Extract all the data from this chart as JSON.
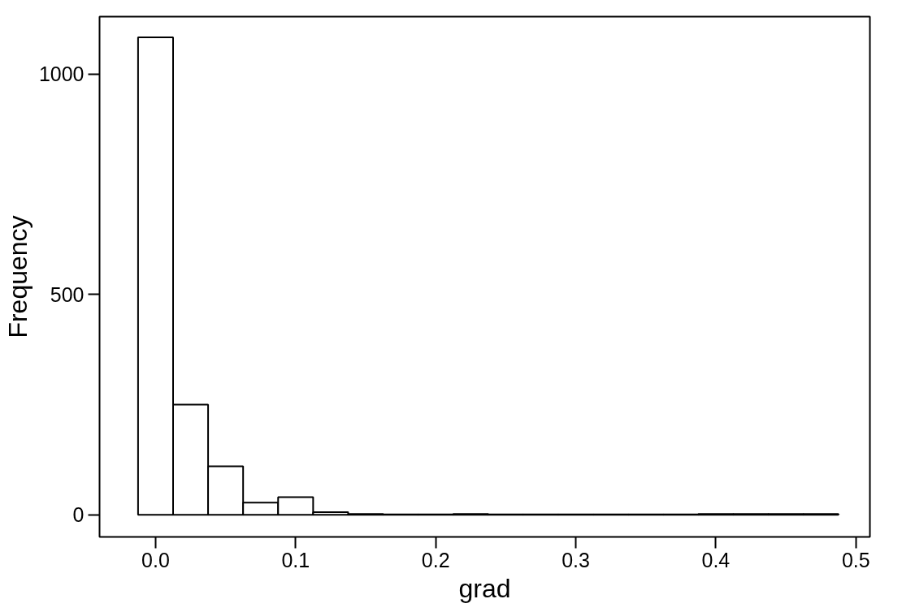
{
  "chart_data": {
    "type": "histogram",
    "xlabel": "grad",
    "ylabel": "Frequency",
    "bins": [
      -0.0125,
      0.0125,
      0.0375,
      0.0625,
      0.0875,
      0.1125,
      0.1375,
      0.1625,
      0.1875,
      0.2125,
      0.2375,
      0.2625,
      0.2875,
      0.3125,
      0.3375,
      0.3625,
      0.3875,
      0.4125,
      0.4375,
      0.4625,
      0.4875
    ],
    "values": [
      1083,
      250,
      110,
      28,
      40,
      6,
      2,
      1,
      1,
      2,
      1,
      1,
      1,
      1,
      1,
      1,
      2,
      2,
      2,
      2
    ],
    "color": "#ffffff",
    "xlim": [
      -0.04,
      0.51
    ],
    "ylim": [
      -50,
      1130
    ],
    "xticks": [
      {
        "value": 0,
        "label": "0.0"
      },
      0.1,
      0.2,
      0.3,
      0.4,
      0.5
    ],
    "yticks": [
      0,
      500,
      1000
    ],
    "grid": false
  }
}
